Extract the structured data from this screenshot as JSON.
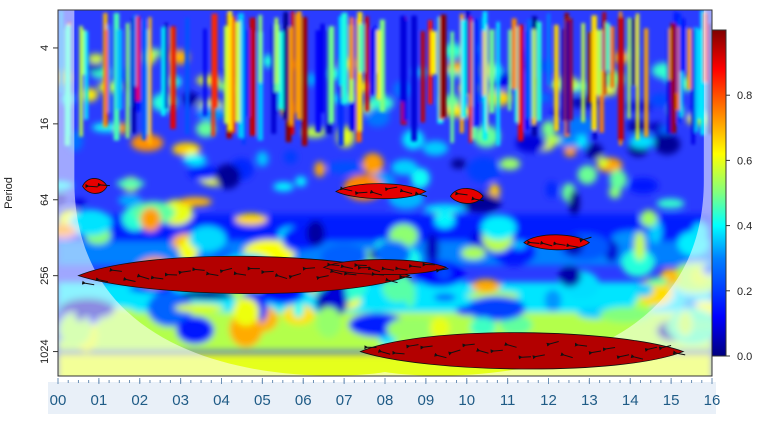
{
  "chart_data": {
    "type": "heatmap",
    "title": "",
    "ylabel": "Period",
    "xlabel": "",
    "y_scale": "log2",
    "y_inverted": true,
    "y_ticks": [
      "4",
      "16",
      "64",
      "256",
      "1024"
    ],
    "y_tick_values": [
      4,
      16,
      64,
      256,
      1024
    ],
    "ylim": [
      2,
      1600
    ],
    "x_ticks": [
      "00",
      "01",
      "02",
      "03",
      "04",
      "05",
      "06",
      "07",
      "08",
      "09",
      "10",
      "11",
      "12",
      "13",
      "14",
      "15",
      "16"
    ],
    "xlim": [
      0,
      16
    ],
    "colorbar": {
      "range": [
        0.0,
        1.0
      ],
      "ticks": [
        "0.0",
        "0.2",
        "0.4",
        "0.6",
        "0.8"
      ],
      "tick_values": [
        0.0,
        0.2,
        0.4,
        0.6,
        0.8
      ],
      "colormap": "jet"
    },
    "cone_of_influence": true,
    "significant_regions": [
      {
        "x_center": 4.5,
        "x_span": [
          0.5,
          8.6
        ],
        "period": 256,
        "value": 0.95
      },
      {
        "x_center": 7.8,
        "x_span": [
          6.5,
          9.5
        ],
        "period": 220,
        "value": 0.95
      },
      {
        "x_center": 11.3,
        "x_span": [
          11.4,
          13.0
        ],
        "period": 140,
        "value": 0.9
      },
      {
        "x_center": 11.0,
        "x_span": [
          7.4,
          15.3
        ],
        "period": 1024,
        "value": 0.95
      },
      {
        "x_center": 7.9,
        "x_span": [
          6.8,
          9.0
        ],
        "period": 55,
        "value": 0.9
      },
      {
        "x_center": 0.9,
        "x_span": [
          0.6,
          1.2
        ],
        "period": 50,
        "value": 0.9
      },
      {
        "x_center": 10.0,
        "x_span": [
          9.6,
          10.4
        ],
        "period": 60,
        "value": 0.9
      }
    ],
    "arrow_direction": "left"
  },
  "colors": {
    "low": "#000080",
    "mid": "#00d0ff",
    "high": "#d40000",
    "contour": "#111111",
    "x_tick_label": "#1f5b86",
    "x_axis_band": "#e9f0f8"
  }
}
